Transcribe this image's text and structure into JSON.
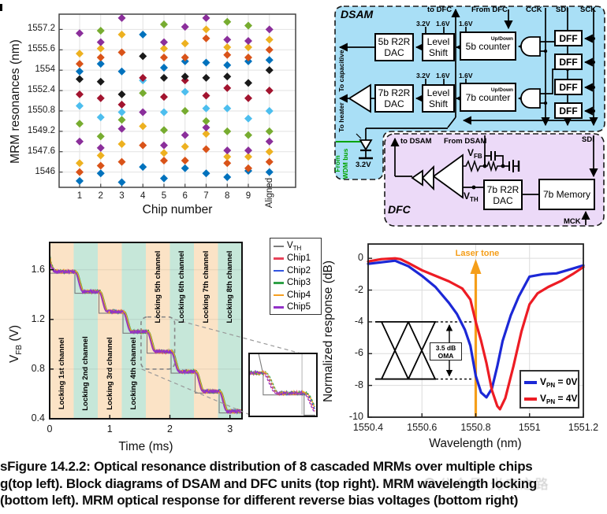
{
  "caption": {
    "lines": [
      "sFigure 14.2.2: Optical resonance distribution of 8 cascaded MRMs over multiple chips",
      "g(top left). Block diagrams of DSAM and DFC units (top right). MRM wavelength locking",
      "(bottom left). MRM optical response for different reverse bias voltages (bottom right)"
    ]
  },
  "watermark": {
    "text": "公众号·光电之路"
  },
  "chart_data": [
    {
      "id": "mrm_resonance_scatter",
      "type": "scatter",
      "xlabel": "Chip number",
      "ylabel": "MRM resonances (nm)",
      "x_categories": [
        "1",
        "2",
        "3",
        "4",
        "5",
        "6",
        "7",
        "8",
        "9",
        "Aligned"
      ],
      "yticks": [
        1546,
        1547.6,
        1549.2,
        1550.8,
        1552.4,
        1554,
        1555.6,
        1557.2
      ],
      "ylim": [
        1544.8,
        1558.4
      ],
      "marker": "diamond",
      "grid": true,
      "mrm_colors": {
        "blue": "#0072BD",
        "orange": "#D95319",
        "yellow": "#EDB120",
        "purple": "#8B2F9B",
        "green": "#77AC30",
        "cyan": "#4DBEEE",
        "darkred": "#A2142F",
        "black": "#1A1A1A"
      },
      "columns": [
        {
          "chip": "1",
          "points": [
            [
              "blue",
              1545.3
            ],
            [
              "orange",
              1546.0
            ],
            [
              "yellow",
              1546.7
            ],
            [
              "purple",
              1548.4
            ],
            [
              "green",
              1549.8
            ],
            [
              "cyan",
              1551.2
            ],
            [
              "darkred",
              1552.1
            ],
            [
              "black",
              1553.3
            ],
            [
              "blue",
              1553.9
            ],
            [
              "orange",
              1554.5
            ],
            [
              "yellow",
              1555.3
            ],
            [
              "purple",
              1556.9
            ]
          ]
        },
        {
          "chip": "2",
          "points": [
            [
              "blue",
              1545.9
            ],
            [
              "orange",
              1546.5
            ],
            [
              "yellow",
              1547.3
            ],
            [
              "purple",
              1547.9
            ],
            [
              "green",
              1548.8
            ],
            [
              "cyan",
              1550.3
            ],
            [
              "darkred",
              1551.8
            ],
            [
              "black",
              1553.1
            ],
            [
              "blue",
              1554.5
            ],
            [
              "orange",
              1555.0
            ],
            [
              "yellow",
              1555.7
            ],
            [
              "purple",
              1556.2
            ],
            [
              "green",
              1557.1
            ]
          ]
        },
        {
          "chip": "3",
          "points": [
            [
              "blue",
              1545.2
            ],
            [
              "orange",
              1546.8
            ],
            [
              "yellow",
              1548.2
            ],
            [
              "purple",
              1549.4
            ],
            [
              "green",
              1550.1
            ],
            [
              "cyan",
              1550.7
            ],
            [
              "darkred",
              1551.3
            ],
            [
              "black",
              1552.1
            ],
            [
              "blue",
              1553.9
            ],
            [
              "orange",
              1555.4
            ],
            [
              "yellow",
              1556.8
            ],
            [
              "purple",
              1558.1
            ]
          ]
        },
        {
          "chip": "4",
          "points": [
            [
              "blue",
              1546.4
            ],
            [
              "orange",
              1548.1
            ],
            [
              "yellow",
              1549.6
            ],
            [
              "purple",
              1550.7
            ],
            [
              "green",
              1552.2
            ],
            [
              "cyan",
              1553.2
            ],
            [
              "darkred",
              1553.4
            ],
            [
              "black",
              1555.1
            ],
            [
              "blue",
              1556.8
            ]
          ]
        },
        {
          "chip": "5",
          "points": [
            [
              "blue",
              1545.5
            ],
            [
              "orange",
              1546.9
            ],
            [
              "yellow",
              1547.5
            ],
            [
              "purple",
              1548.1
            ],
            [
              "green",
              1549.3
            ],
            [
              "cyan",
              1550.7
            ],
            [
              "darkred",
              1551.9
            ],
            [
              "black",
              1553.4
            ],
            [
              "blue",
              1554.2
            ],
            [
              "orange",
              1555.0
            ],
            [
              "yellow",
              1555.7
            ],
            [
              "purple",
              1556.2
            ],
            [
              "green",
              1557.6
            ]
          ]
        },
        {
          "chip": "6",
          "points": [
            [
              "blue",
              1546.3
            ],
            [
              "orange",
              1546.9
            ],
            [
              "yellow",
              1548.0
            ],
            [
              "purple",
              1548.9
            ],
            [
              "green",
              1550.8
            ],
            [
              "cyan",
              1552.3
            ],
            [
              "darkred",
              1553.2
            ],
            [
              "black",
              1553.5
            ],
            [
              "blue",
              1554.7
            ],
            [
              "orange",
              1555.0
            ],
            [
              "yellow",
              1556.1
            ],
            [
              "purple",
              1557.4
            ]
          ]
        },
        {
          "chip": "7",
          "points": [
            [
              "blue",
              1545.9
            ],
            [
              "orange",
              1547.8
            ],
            [
              "yellow",
              1549.0
            ],
            [
              "purple",
              1549.5
            ],
            [
              "green",
              1550.0
            ],
            [
              "cyan",
              1551.0
            ],
            [
              "darkred",
              1552.0
            ],
            [
              "black",
              1553.4
            ],
            [
              "blue",
              1554.6
            ],
            [
              "orange",
              1556.5
            ],
            [
              "yellow",
              1557.2
            ],
            [
              "purple",
              1558.1
            ]
          ]
        },
        {
          "chip": "8",
          "points": [
            [
              "blue",
              1545.6
            ],
            [
              "orange",
              1546.7
            ],
            [
              "yellow",
              1547.2
            ],
            [
              "purple",
              1547.7
            ],
            [
              "green",
              1549.2
            ],
            [
              "cyan",
              1551.0
            ],
            [
              "darkred",
              1552.6
            ],
            [
              "black",
              1553.5
            ],
            [
              "blue",
              1554.4
            ],
            [
              "orange",
              1555.2
            ],
            [
              "yellow",
              1555.8
            ],
            [
              "purple",
              1556.4
            ],
            [
              "green",
              1557.8
            ]
          ]
        },
        {
          "chip": "9",
          "points": [
            [
              "blue",
              1546.1
            ],
            [
              "orange",
              1546.3
            ],
            [
              "yellow",
              1547.2
            ],
            [
              "purple",
              1547.7
            ],
            [
              "green",
              1548.9
            ],
            [
              "cyan",
              1550.2
            ],
            [
              "darkred",
              1551.8
            ],
            [
              "black",
              1553.0
            ],
            [
              "blue",
              1554.7
            ],
            [
              "orange",
              1555.0
            ],
            [
              "yellow",
              1555.8
            ],
            [
              "purple",
              1556.3
            ],
            [
              "green",
              1557.5
            ]
          ]
        },
        {
          "chip": "Aligned",
          "points": [
            [
              "blue",
              1546.0
            ],
            [
              "orange",
              1546.8
            ],
            [
              "yellow",
              1547.6
            ],
            [
              "purple",
              1548.4
            ],
            [
              "green",
              1549.2
            ],
            [
              "cyan",
              1550.8
            ],
            [
              "darkred",
              1552.4
            ],
            [
              "black",
              1554.0
            ],
            [
              "blue",
              1554.8
            ],
            [
              "orange",
              1555.6
            ],
            [
              "yellow",
              1556.4
            ],
            [
              "purple",
              1557.2
            ]
          ]
        }
      ]
    },
    {
      "id": "wavelength_locking",
      "type": "line",
      "xlabel": "Time (ms)",
      "ylabel_main": "V",
      "ylabel_sub": "FB",
      "ylabel_unit": " (V)",
      "xticks": [
        0,
        1,
        2,
        3
      ],
      "yticks": [
        0.4,
        0.8,
        1.2,
        1.6
      ],
      "xlim": [
        0,
        3.2
      ],
      "ylim": [
        0.4,
        1.82
      ],
      "plateau_levels": [
        1.585,
        1.424,
        1.263,
        1.102,
        0.941,
        0.78,
        0.62,
        0.46
      ],
      "chip_step_times": [
        0.5,
        0.9,
        1.3,
        1.7,
        2.1,
        2.5,
        2.9
      ],
      "vth_step_times": [
        0.42,
        0.82,
        1.22,
        1.62,
        2.02,
        2.42,
        2.82
      ],
      "vth_offset": -0.013,
      "vth_color": "#7c7c7c",
      "bands": [
        {
          "label": "Locking 1st channel",
          "color": "#FBE3C6",
          "label_pos": "bottom"
        },
        {
          "label": "Locking 2nd channel",
          "color": "#C6E7D9",
          "label_pos": "bottom"
        },
        {
          "label": "Locking 3rd channel",
          "color": "#FBE3C6",
          "label_pos": "bottom"
        },
        {
          "label": "Locking 4th channel",
          "color": "#C6E7D9",
          "label_pos": "bottom"
        },
        {
          "label": "Locking 5th channel",
          "color": "#FBE3C6",
          "label_pos": "top"
        },
        {
          "label": "Locking 6th channel",
          "color": "#C6E7D9",
          "label_pos": "top"
        },
        {
          "label": "Locking 7th channel",
          "color": "#FBE3C6",
          "label_pos": "top"
        },
        {
          "label": "Locking 8th channel",
          "color": "#C6E7D9",
          "label_pos": "top"
        }
      ],
      "legend": [
        {
          "label_main": "V",
          "label_sub": "TH",
          "color": "#7c7c7c"
        },
        {
          "label_main": "Chip1",
          "color": "#E8435A"
        },
        {
          "label_main": "Chip2",
          "color": "#3355E0"
        },
        {
          "label_main": "Chip3",
          "color": "#2FA148"
        },
        {
          "label_main": "Chip4",
          "color": "#F6A021"
        },
        {
          "label_main": "Chip5",
          "color": "#9332C8"
        }
      ],
      "chips": [
        {
          "name": "Chip1",
          "color": "#E8435A",
          "t_off": -0.012,
          "v_start_extra": 0.1
        },
        {
          "name": "Chip2",
          "color": "#3355E0",
          "t_off": 0.0,
          "v_start_extra": 0.135
        },
        {
          "name": "Chip3",
          "color": "#2FA148",
          "t_off": 0.012,
          "v_start_extra": 0.16
        },
        {
          "name": "Chip4",
          "color": "#F6A021",
          "t_off": 0.006,
          "v_start_extra": 0.145
        },
        {
          "name": "Chip5",
          "color": "#9332C8",
          "t_off": -0.022,
          "v_start_extra": 0.085
        }
      ],
      "inset": {
        "t_range": [
          1.49,
          2.13
        ],
        "v_range": [
          0.77,
          1.25
        ]
      }
    },
    {
      "id": "optical_response",
      "type": "line",
      "xlabel": "Wavelength (nm)",
      "ylabel": "Normalized response (dB)",
      "xticks": [
        1550.4,
        1550.6,
        1550.8,
        1551,
        1551.2
      ],
      "yticks": [
        0,
        -2,
        -4,
        -6,
        -8,
        -10
      ],
      "xlim": [
        1550.4,
        1551.2
      ],
      "ylim": [
        -10,
        0.9
      ],
      "grid": true,
      "series": [
        {
          "name_main": "V",
          "name_sub": "PN",
          "name_rest": " = 0V",
          "color": "#1C28D6",
          "points": [
            [
              1550.4,
              -0.35
            ],
            [
              1550.45,
              -0.25
            ],
            [
              1550.5,
              -0.15
            ],
            [
              1550.55,
              -0.5
            ],
            [
              1550.6,
              -1.1
            ],
            [
              1550.65,
              -1.8
            ],
            [
              1550.7,
              -2.8
            ],
            [
              1550.73,
              -3.5
            ],
            [
              1550.76,
              -4.5
            ],
            [
              1550.78,
              -5.5
            ],
            [
              1550.8,
              -7.4
            ],
            [
              1550.82,
              -8.45
            ],
            [
              1550.84,
              -8.75
            ],
            [
              1550.86,
              -8.2
            ],
            [
              1550.88,
              -6.8
            ],
            [
              1550.9,
              -5.2
            ],
            [
              1550.93,
              -3.6
            ],
            [
              1550.96,
              -2.4
            ],
            [
              1551.0,
              -1.15
            ],
            [
              1551.05,
              -1.0
            ],
            [
              1551.1,
              -0.95
            ],
            [
              1551.15,
              -0.7
            ],
            [
              1551.2,
              -0.45
            ]
          ]
        },
        {
          "name_main": "V",
          "name_sub": "PN",
          "name_rest": " = 4V",
          "color": "#ED1C24",
          "points": [
            [
              1550.4,
              -0.2
            ],
            [
              1550.45,
              -0.05
            ],
            [
              1550.5,
              0.0
            ],
            [
              1550.52,
              -0.05
            ],
            [
              1550.55,
              -0.3
            ],
            [
              1550.6,
              -0.75
            ],
            [
              1550.65,
              -1.1
            ],
            [
              1550.7,
              -1.45
            ],
            [
              1550.75,
              -1.9
            ],
            [
              1550.78,
              -2.6
            ],
            [
              1550.8,
              -4.0
            ],
            [
              1550.82,
              -5.2
            ],
            [
              1550.84,
              -6.6
            ],
            [
              1550.86,
              -8.3
            ],
            [
              1550.88,
              -9.3
            ],
            [
              1550.89,
              -9.5
            ],
            [
              1550.91,
              -8.8
            ],
            [
              1550.94,
              -6.8
            ],
            [
              1550.97,
              -4.6
            ],
            [
              1551.0,
              -2.9
            ],
            [
              1551.03,
              -2.2
            ],
            [
              1551.07,
              -1.8
            ],
            [
              1551.12,
              -1.4
            ],
            [
              1551.16,
              -1.0
            ],
            [
              1551.2,
              -0.55
            ]
          ]
        }
      ],
      "annotations": {
        "laser_tone": {
          "label": "Laser tone",
          "x": 1550.8,
          "color": "#F59E19"
        },
        "oma": {
          "label_line1": "3.5 dB",
          "label_line2": "OMA",
          "upper_db": -4,
          "lower_db": -7.6
        }
      }
    }
  ],
  "diagram": {
    "dsam": {
      "title": "DSAM",
      "to_dfc": "to DFC",
      "from_dfc": "From DFC",
      "cck": "CCK",
      "sdi": "SDI",
      "sck": "SCK",
      "v32": "3.2V",
      "v16": "1.6V",
      "dac5": "5b R2R DAC",
      "dac7": "7b R2R DAC",
      "level_shift": "Level Shift",
      "counter5": "5b counter",
      "counter7": "7b counter",
      "updown": "Up/Down",
      "dff": "DFF",
      "to_capacitive": "To capacitive",
      "to_heater": "To heater",
      "from_wdm_1": "From",
      "from_wdm_2": "WDM bus",
      "bias_32": "3.2V",
      "bg_color": "#A9DFF6"
    },
    "dfc": {
      "title": "DFC",
      "to_dsam": "to DSAM",
      "from_dsam": "From DSAM",
      "sdi": "SDI",
      "mck": "MCK",
      "vfb_main": "V",
      "vfb_sub": "FB",
      "vth_main": "V",
      "vth_sub": "TH",
      "dac7": "7b R2R DAC",
      "memory": "7b Memory",
      "bg_color": "#ECDAF8"
    }
  }
}
